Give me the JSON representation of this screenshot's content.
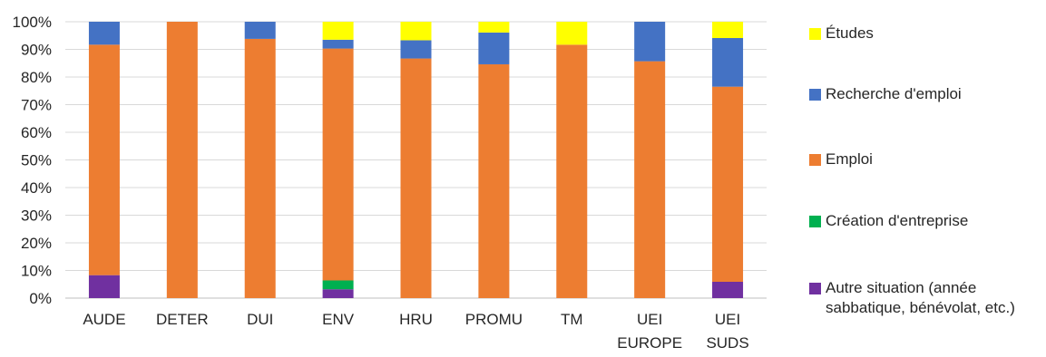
{
  "chart_data": {
    "type": "bar",
    "stacked": true,
    "percent": true,
    "categories": [
      [
        "AUDE"
      ],
      [
        "DETER"
      ],
      [
        "DUI"
      ],
      [
        "ENV"
      ],
      [
        "HRU"
      ],
      [
        "PROMU"
      ],
      [
        "TM"
      ],
      [
        "UEI",
        "EUROPE"
      ],
      [
        "UEI",
        "SUDS"
      ]
    ],
    "y_ticks": [
      "0%",
      "10%",
      "20%",
      "30%",
      "40%",
      "50%",
      "60%",
      "70%",
      "80%",
      "90%",
      "100%"
    ],
    "ylim": [
      0,
      100
    ],
    "grid": true,
    "legend_position": "right",
    "series": [
      {
        "name": "Autre situation (année sabbatique, bénévolat, etc.)",
        "color": "#7030a0",
        "values": [
          8.3,
          0,
          0,
          3.2,
          0,
          0,
          0,
          0,
          5.9
        ]
      },
      {
        "name": "Création d'entreprise",
        "color": "#00b050",
        "values": [
          0,
          0,
          0,
          3.2,
          0,
          0,
          0,
          0,
          0
        ]
      },
      {
        "name": "Emploi",
        "color": "#ed7d31",
        "values": [
          83.4,
          100,
          93.8,
          83.9,
          86.7,
          84.6,
          91.7,
          85.7,
          70.6
        ]
      },
      {
        "name": "Recherche d'emploi",
        "color": "#4472c4",
        "values": [
          8.3,
          0,
          6.2,
          3.2,
          6.6,
          11.5,
          0,
          14.3,
          17.6
        ]
      },
      {
        "name": "Études",
        "color": "#ffff00",
        "values": [
          0,
          0,
          0,
          6.5,
          6.7,
          3.9,
          8.3,
          0,
          5.9
        ]
      }
    ]
  }
}
